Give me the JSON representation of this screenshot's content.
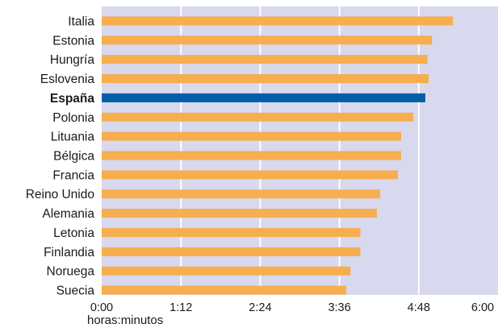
{
  "chart_data": {
    "type": "bar",
    "orientation": "horizontal",
    "title": "",
    "xlabel": "horas:minutos",
    "ylabel": "",
    "xlim": [
      0,
      360
    ],
    "grid": true,
    "x_ticks": [
      {
        "value": 0,
        "label": "0:00"
      },
      {
        "value": 72,
        "label": "1:12"
      },
      {
        "value": 144,
        "label": "2:24"
      },
      {
        "value": 216,
        "label": "3:36"
      },
      {
        "value": 288,
        "label": "4:48"
      },
      {
        "value": 360,
        "label": "6:00"
      }
    ],
    "categories": [
      "Italia",
      "Estonia",
      "Hungría",
      "Eslovenia",
      "España",
      "Polonia",
      "Lituania",
      "Bélgica",
      "Francia",
      "Reino Unido",
      "Alemania",
      "Letonia",
      "Finlandia",
      "Noruega",
      "Suecia"
    ],
    "values": [
      319,
      300,
      296,
      297,
      294,
      283,
      272,
      272,
      269,
      253,
      250,
      235,
      235,
      226,
      222
    ],
    "highlight": "España",
    "colors": {
      "bar": "#f6ae4f",
      "highlight": "#005fa6",
      "plot_bg": "#d8d8ee",
      "grid": "#ffffff"
    }
  }
}
